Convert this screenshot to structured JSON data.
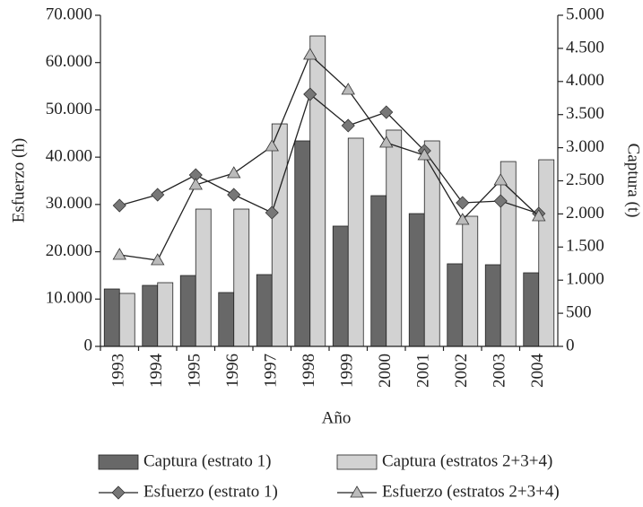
{
  "chart_data": {
    "type": "combo",
    "x_label": "Año",
    "y_label": "Esfuerzo (h)",
    "y2_label": "Captura (t)",
    "categories": [
      "1993",
      "1994",
      "1995",
      "1996",
      "1997",
      "1998",
      "1999",
      "2000",
      "2001",
      "2002",
      "2003",
      "2004"
    ],
    "ylim": [
      0,
      70000
    ],
    "yticks": [
      0,
      {
        "value": 10000,
        "label": "10.000"
      },
      {
        "value": 20000,
        "label": "20.000"
      },
      {
        "value": 30000,
        "label": "30.000"
      },
      {
        "value": 40000,
        "label": "40.000"
      },
      {
        "value": 50000,
        "label": "50.000"
      },
      {
        "value": 60000,
        "label": "60.000"
      },
      {
        "value": 70000,
        "label": "70.000"
      }
    ],
    "y2lim": [
      0,
      5000
    ],
    "y2ticks": [
      0,
      500,
      {
        "value": 1000,
        "label": "1.000"
      },
      {
        "value": 1500,
        "label": "1.500"
      },
      {
        "value": 2000,
        "label": "2.000"
      },
      {
        "value": 2500,
        "label": "2.500"
      },
      {
        "value": 3000,
        "label": "3.000"
      },
      {
        "value": 3500,
        "label": "3.500"
      },
      {
        "value": 4000,
        "label": "4.000"
      },
      {
        "value": 4500,
        "label": "4.500"
      },
      {
        "value": 5000,
        "label": "5.000"
      }
    ],
    "series": [
      {
        "name": "Captura (estrato 1)",
        "type": "bar",
        "axis": "y2",
        "color": "#686868",
        "values": [
          867,
          921,
          1070,
          813,
          1084,
          3103,
          1816,
          2276,
          2005,
          1247,
          1233,
          1111
        ]
      },
      {
        "name": "Captura (estratos 2+3+4)",
        "type": "bar",
        "axis": "y2",
        "color": "#d2d2d2",
        "values": [
          800,
          962,
          2073,
          2073,
          3360,
          4688,
          3144,
          3266,
          3103,
          1965,
          2791,
          2818
        ]
      },
      {
        "name": "Esfuerzo (estrato 1)",
        "type": "line",
        "marker": "diamond",
        "color": "#777777",
        "values": [
          29780,
          32060,
          36230,
          32060,
          28270,
          53300,
          46670,
          49510,
          41350,
          30350,
          30730,
          28080
        ]
      },
      {
        "name": "Esfuerzo (estratos 2+3+4)",
        "type": "line",
        "marker": "triangle",
        "color": "#bbbbbb",
        "values": [
          19350,
          18210,
          34150,
          36610,
          42300,
          61650,
          54250,
          43060,
          40410,
          26750,
          35100,
          27510
        ]
      }
    ]
  }
}
